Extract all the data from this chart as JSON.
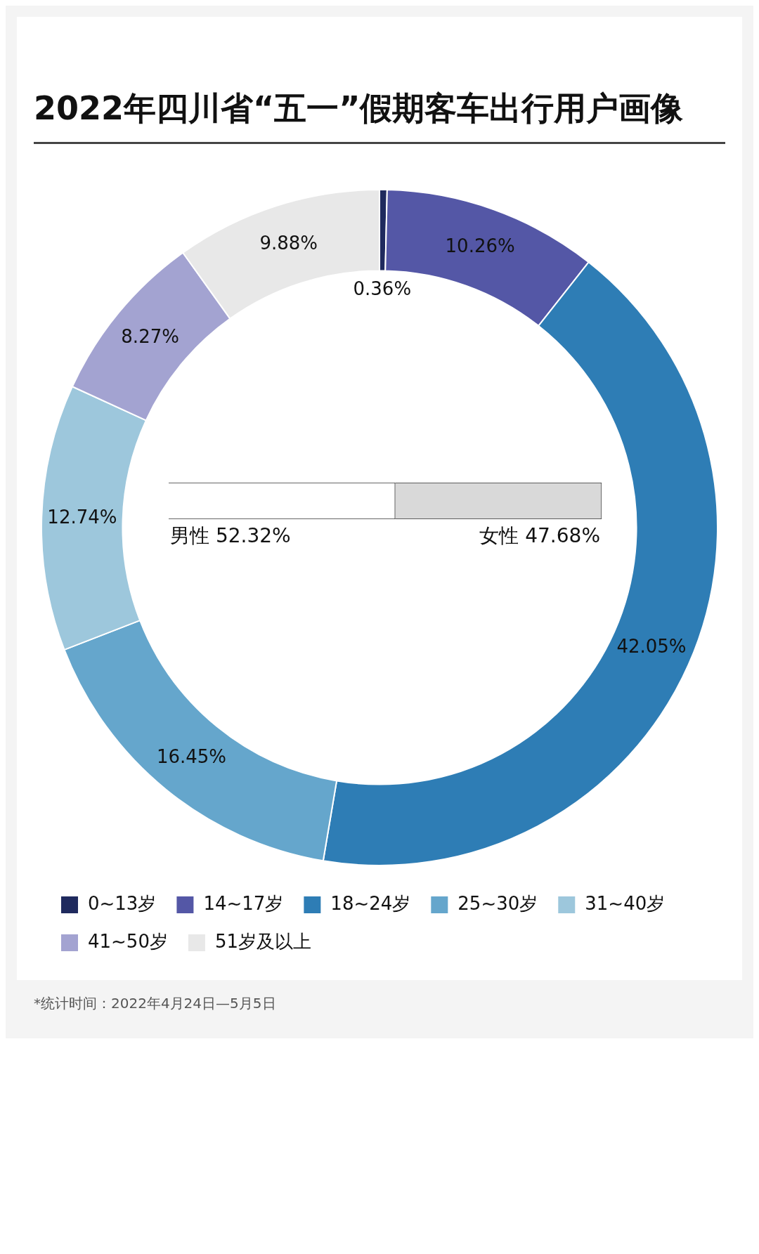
{
  "chart_data": [
    {
      "type": "donut",
      "title": "2022年四川省“五一”假期客车出行用户画像",
      "categories": [
        "0~13岁",
        "14~17岁",
        "18~24岁",
        "25~30岁",
        "31~40岁",
        "41~50岁",
        "51岁及以上"
      ],
      "values": [
        0.36,
        10.26,
        42.05,
        16.45,
        12.74,
        8.27,
        9.88
      ],
      "colors": [
        "#1f2a5e",
        "#5457a6",
        "#2e7db5",
        "#65a6cc",
        "#9dc7dc",
        "#a3a3d1",
        "#e8e8e8"
      ],
      "value_labels": [
        "0.36%",
        "10.26%",
        "42.05%",
        "16.45%",
        "12.74%",
        "8.27%",
        "9.88%"
      ],
      "legend": "bottom",
      "annotations": [
        "*统计时间：2022年4月24日—5月5日"
      ]
    },
    {
      "type": "bar",
      "orientation": "horizontal",
      "stacked": true,
      "categories": [
        null
      ],
      "series": [
        {
          "name": "男性",
          "color": "#ffffff",
          "values": [
            52.32
          ],
          "value_labels": [
            "52.32%"
          ]
        },
        {
          "name": "女性",
          "color": "#d9d9d9",
          "values": [
            47.68
          ],
          "value_labels": [
            "47.68%"
          ]
        }
      ]
    }
  ]
}
